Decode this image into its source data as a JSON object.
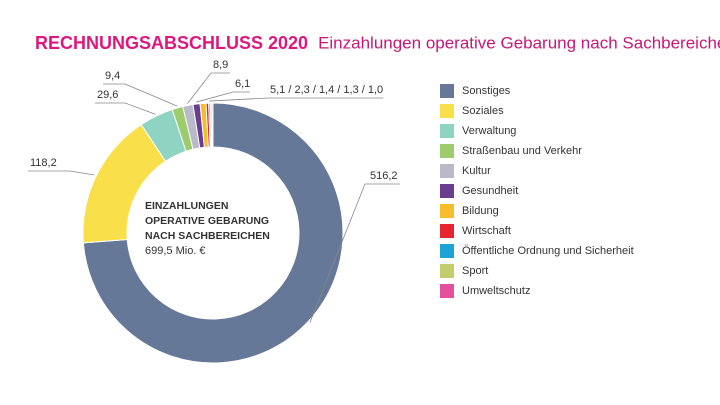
{
  "chart_data": {
    "type": "donut",
    "title": "RECHNUNGSABSCHLUSS 2020",
    "subtitle": "Einzahlungen operative Gebarung nach Sachbereichen",
    "center_lines": [
      "EINZAHLUNGEN",
      "OPERATIVE GEBARUNG",
      "NACH SACHBEREICHEN"
    ],
    "total": 699.5,
    "total_label": "699,5 Mio. €",
    "categories": [
      "Sonstiges",
      "Soziales",
      "Verwaltung",
      "Straßenbau und Verkehr",
      "Kultur",
      "Gesundheit",
      "Bildung",
      "Wirtschaft",
      "Öffentliche Ordnung und Sicherheit",
      "Sport",
      "Umweltschutz"
    ],
    "values": [
      516.2,
      118.2,
      29.6,
      9.4,
      8.9,
      6.1,
      5.1,
      2.3,
      1.4,
      1.3,
      1.0
    ],
    "value_labels": [
      "516,2",
      "118,2",
      "29,6",
      "9,4",
      "8,9",
      "6,1",
      "5,1",
      "2,3",
      "1,4",
      "1,3",
      "1,0"
    ],
    "label_separator": " / ",
    "colors": [
      "#657897",
      "#f9e04b",
      "#8fd3c3",
      "#9ccc6c",
      "#b9b9c9",
      "#6a3d8f",
      "#f5be2a",
      "#e8242e",
      "#1ea3d8",
      "#c5cc6e",
      "#e44f9e"
    ],
    "legend": "right"
  }
}
